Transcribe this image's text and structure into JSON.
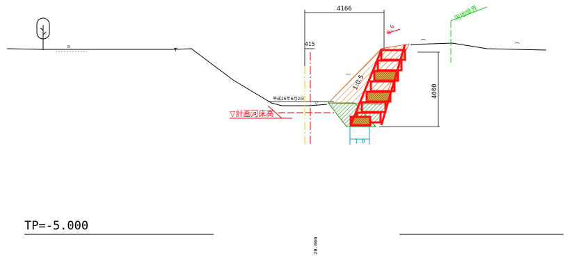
{
  "labels": {
    "top_width": "4166",
    "offset_width": "415",
    "wall_height": "4000",
    "riverbed_plan": "▽計画河床高",
    "survey_date": "平成26年6月2日",
    "land_boundary": "用地境界",
    "slope_ratio": "1:0.5",
    "base_ratio": "1.0",
    "bench_dim": "0.6",
    "tp_level": "TP=-5.000",
    "bottom_scale": "20.000",
    "marker_r": "R"
  },
  "colors": {
    "crib_red": "#ff1010",
    "fill_orange": "#e9a26a",
    "base_green": "#2fb52f",
    "boundary_green": "#22cc22",
    "yellow_line": "#e6e600",
    "cyan_dim": "#00a6c8"
  },
  "icons": [
    "tree-icon"
  ]
}
